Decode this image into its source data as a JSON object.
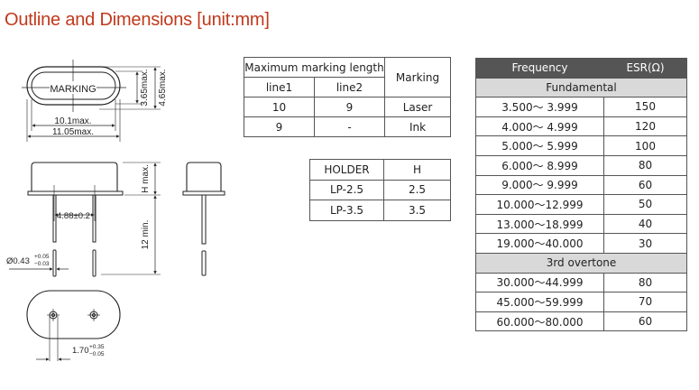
{
  "title": "Outline and Dimensions [unit:mm]",
  "drawing": {
    "marking": "MARKING",
    "dim_inner_height": "3.65max.",
    "dim_outer_height": "4.65max.",
    "dim_inner_width": "10.1max.",
    "dim_outer_width": "11.05max.",
    "dim_h": "H max.",
    "dim_lead_length": "12 min.",
    "dim_pitch": "4.88±0.2",
    "dim_lead_dia": "Ø0.43",
    "dim_lead_dia_plus": "+0.05",
    "dim_lead_dia_minus": "−0.03",
    "dim_offset": "1.70",
    "dim_offset_plus": "+0.35",
    "dim_offset_minus": "−0.05"
  },
  "marking_table": {
    "header": "Maximum marking length",
    "col_marking": "Marking",
    "col_line1": "line1",
    "col_line2": "line2",
    "rows": [
      {
        "line1": "10",
        "line2": "9",
        "marking": "Laser"
      },
      {
        "line1": "9",
        "line2": "-",
        "marking": "Ink"
      }
    ]
  },
  "holder_table": {
    "col_holder": "HOLDER",
    "col_h": "H",
    "rows": [
      {
        "holder": "LP-2.5",
        "h": "2.5"
      },
      {
        "holder": "LP-3.5",
        "h": "3.5"
      }
    ]
  },
  "esr_table": {
    "col_freq": "Frequency",
    "col_esr": "ESR(Ω)",
    "colors": {
      "header_bg": "#555555",
      "section_bg": "#d9d9d9"
    },
    "section1": "Fundamental",
    "fundamental": [
      {
        "f": "3.500～ 3.999",
        "esr": "150"
      },
      {
        "f": "4.000～ 4.999",
        "esr": "120"
      },
      {
        "f": "5.000～ 5.999",
        "esr": "100"
      },
      {
        "f": "6.000～ 8.999",
        "esr": "80"
      },
      {
        "f": "9.000～ 9.999",
        "esr": "60"
      },
      {
        "f": "10.000～12.999",
        "esr": "50"
      },
      {
        "f": "13.000～18.999",
        "esr": "40"
      },
      {
        "f": "19.000～40.000",
        "esr": "30"
      }
    ],
    "section2": "3rd overtone",
    "overtone": [
      {
        "f": "30.000～44.999",
        "esr": "80"
      },
      {
        "f": "45.000～59.999",
        "esr": "70"
      },
      {
        "f": "60.000～80.000",
        "esr": "60"
      }
    ]
  }
}
